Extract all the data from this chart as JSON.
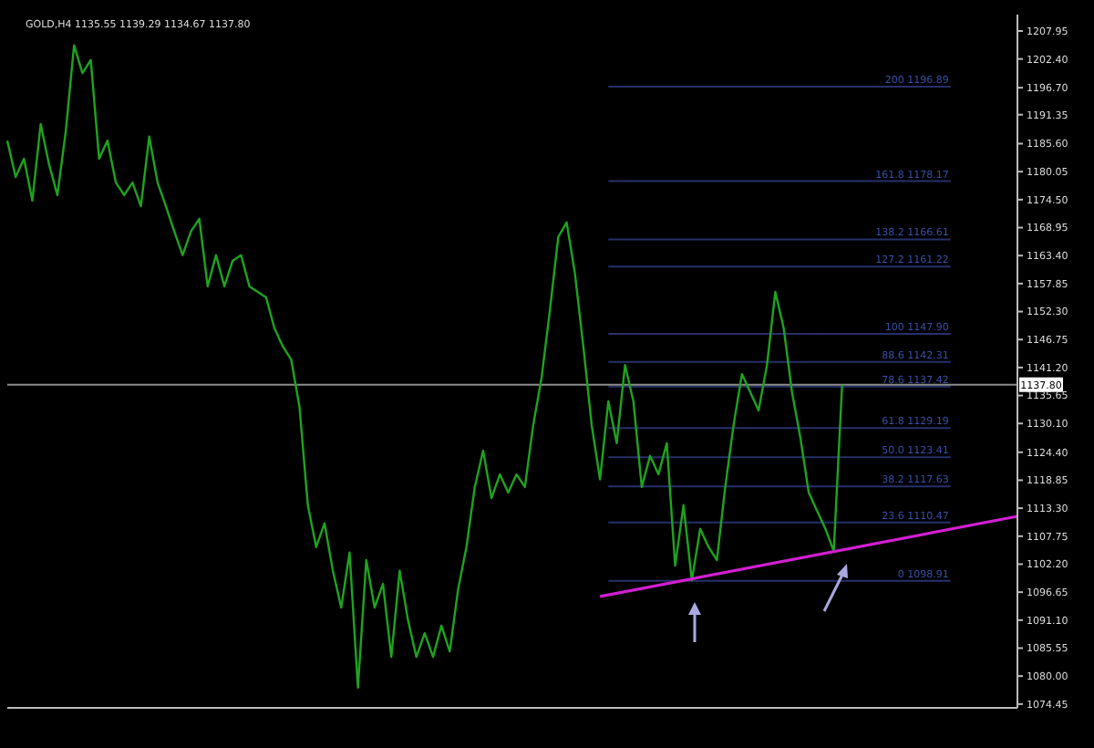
{
  "chart_data": {
    "type": "line",
    "title": "GOLD,H4  1135.55 1139.29 1134.67 1137.80",
    "categories": [
      null,
      null,
      null,
      null,
      null,
      null,
      null,
      null,
      null,
      null,
      null,
      null,
      null,
      null,
      null,
      null,
      null,
      null,
      null,
      null,
      null,
      null,
      null,
      null,
      null,
      null,
      null,
      null,
      null,
      null,
      null,
      null,
      null,
      null,
      null,
      null,
      null,
      null,
      null,
      null,
      null,
      null,
      null,
      null,
      null,
      null,
      null,
      null,
      null,
      null,
      null,
      null,
      null,
      null,
      null,
      null,
      null,
      null,
      null,
      null,
      null,
      null,
      null,
      null,
      null,
      null,
      null,
      null,
      null,
      null,
      null,
      null,
      null,
      null,
      null,
      null,
      null,
      null,
      null,
      null,
      null,
      null,
      null,
      null,
      null,
      null,
      null,
      null,
      null,
      null,
      null,
      null,
      null,
      null,
      null,
      null,
      null,
      null,
      null,
      null,
      null,
      null,
      null,
      null,
      null,
      null,
      null,
      null,
      null,
      null,
      null,
      null,
      null,
      null,
      null,
      null,
      null,
      null,
      null,
      null,
      null,
      null
    ],
    "ylim": [
      1073.7,
      1211.2
    ],
    "tick_labels": "y",
    "marker": "none",
    "line_style": "solid",
    "yticks": [
      {
        "value": 1207.95,
        "label": "1207.95"
      },
      {
        "value": 1202.4,
        "label": "1202.40"
      },
      {
        "value": 1196.7,
        "label": "1196.70"
      },
      {
        "value": 1191.35,
        "label": "1191.35"
      },
      {
        "value": 1185.6,
        "label": "1185.60"
      },
      {
        "value": 1180.05,
        "label": "1180.05"
      },
      {
        "value": 1174.5,
        "label": "1174.50"
      },
      {
        "value": 1168.95,
        "label": "1168.95"
      },
      {
        "value": 1163.4,
        "label": "1163.40"
      },
      {
        "value": 1157.85,
        "label": "1157.85"
      },
      {
        "value": 1152.3,
        "label": "1152.30"
      },
      {
        "value": 1146.75,
        "label": "1146.75"
      },
      {
        "value": 1141.2,
        "label": "1141.20"
      },
      {
        "value": 1135.65,
        "label": "1135.65"
      },
      {
        "value": 1130.1,
        "label": "1130.10"
      },
      {
        "value": 1124.4,
        "label": "1124.40"
      },
      {
        "value": 1118.85,
        "label": "1118.85"
      },
      {
        "value": 1113.3,
        "label": "1113.30"
      },
      {
        "value": 1107.75,
        "label": "1107.75"
      },
      {
        "value": 1102.2,
        "label": "1102.20"
      },
      {
        "value": 1096.65,
        "label": "1096.65"
      },
      {
        "value": 1091.1,
        "label": "1091.10"
      },
      {
        "value": 1085.55,
        "label": "1085.55"
      },
      {
        "value": 1080,
        "label": "1080.00"
      },
      {
        "value": 1074.45,
        "label": "1074.45"
      }
    ],
    "series": [
      {
        "color": "#1fa31f",
        "values": [
          1186.2,
          1179.0,
          1182.6,
          1174.3,
          1189.5,
          1181.5,
          1175.4,
          1188.0,
          1205.1,
          1199.6,
          1202.2,
          1182.6,
          1186.2,
          1177.9,
          1175.4,
          1177.9,
          1173.2,
          1187.0,
          1177.9,
          1173.2,
          1168.2,
          1163.5,
          1168.2,
          1170.7,
          1157.3,
          1163.5,
          1157.3,
          1162.4,
          1163.5,
          1157.3,
          1156.2,
          1155.1,
          1149.0,
          1145.4,
          1142.8,
          1133.4,
          1113.9,
          1105.6,
          1110.3,
          1100.9,
          1093.6,
          1104.5,
          1077.7,
          1103.0,
          1093.6,
          1098.3,
          1083.8,
          1100.9,
          1091.1,
          1083.8,
          1088.5,
          1083.8,
          1090.0,
          1084.9,
          1097.2,
          1105.6,
          1117.5,
          1124.7,
          1115.3,
          1120.0,
          1116.4,
          1120.0,
          1117.5,
          1129.8,
          1139.2,
          1152.6,
          1167.1,
          1170.0,
          1159.8,
          1145.4,
          1129.8,
          1119.0,
          1134.5,
          1126.2,
          1141.7,
          1134.5,
          1117.5,
          1123.7,
          1120.0,
          1126.2,
          1101.9,
          1113.9,
          1099.0,
          1109.2,
          1105.6,
          1103.0,
          1117.5,
          1129.8,
          1139.9,
          1136.3,
          1132.7,
          1141.7,
          1156.2,
          1149.0,
          1136.3,
          1127.3,
          1116.4,
          1112.8,
          1109.2,
          1104.8,
          1137.8,
          null,
          null,
          null,
          null,
          null,
          null,
          null,
          null,
          null,
          null,
          null,
          null,
          null,
          null,
          null,
          null,
          null,
          null,
          null,
          null,
          null
        ]
      },
      {
        "type": "line",
        "color": "#d21fd2",
        "values": [
          null,
          null,
          null,
          null,
          null,
          null,
          null,
          null,
          null,
          null,
          null,
          null,
          null,
          null,
          null,
          null,
          null,
          null,
          null,
          null,
          null,
          null,
          null,
          null,
          null,
          null,
          null,
          null,
          null,
          null,
          null,
          null,
          null,
          null,
          null,
          null,
          null,
          null,
          null,
          null,
          null,
          null,
          null,
          null,
          null,
          null,
          null,
          null,
          null,
          null,
          null,
          null,
          null,
          null,
          null,
          null,
          null,
          null,
          null,
          null,
          null,
          null,
          null,
          null,
          null,
          null,
          null,
          null,
          null,
          null,
          null,
          1095.8,
          null,
          null,
          null,
          null,
          null,
          null,
          null,
          null,
          null,
          null,
          null,
          null,
          null,
          null,
          null,
          null,
          null,
          null,
          null,
          null,
          null,
          null,
          null,
          null,
          null,
          null,
          null,
          null,
          null,
          null,
          null,
          null,
          null,
          null,
          null,
          null,
          null,
          null,
          null,
          null,
          null,
          null,
          null,
          null,
          null,
          null,
          null,
          null,
          null,
          1111.7
        ]
      }
    ],
    "ref_lines": [
      {
        "axis": "y",
        "value": 1137.8,
        "label": "1137.80",
        "color": "#8c8c8c"
      },
      {
        "axis": "y",
        "value": 1098.91,
        "label": "0 1098.91",
        "color": "#27306b"
      },
      {
        "axis": "y",
        "value": 1110.47,
        "label": "23.6 1110.47",
        "color": "#27306b"
      },
      {
        "axis": "y",
        "value": 1117.63,
        "label": "38.2 1117.63",
        "color": "#27306b"
      },
      {
        "axis": "y",
        "value": 1123.41,
        "label": "50.0 1123.41",
        "color": "#27306b"
      },
      {
        "axis": "y",
        "value": 1129.19,
        "label": "61.8 1129.19",
        "color": "#27306b"
      },
      {
        "axis": "y",
        "value": 1137.42,
        "label": "78.6 1137.42",
        "color": "#27306b"
      },
      {
        "axis": "y",
        "value": 1142.31,
        "label": "88.6 1142.31",
        "color": "#27306b"
      },
      {
        "axis": "y",
        "value": 1147.9,
        "label": "100 1147.90",
        "color": "#27306b"
      },
      {
        "axis": "y",
        "value": 1161.22,
        "label": "127.2 1161.22",
        "color": "#27306b"
      },
      {
        "axis": "y",
        "value": 1166.61,
        "label": "138.2 1166.61",
        "color": "#27306b"
      },
      {
        "axis": "y",
        "value": 1178.17,
        "label": "161.8 1178.17",
        "color": "#27306b"
      },
      {
        "axis": "y",
        "value": 1196.89,
        "label": "200 1196.89",
        "color": "#27306b"
      }
    ]
  }
}
